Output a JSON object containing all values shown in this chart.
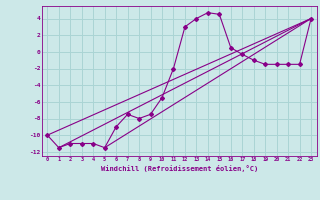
{
  "xlabel": "Windchill (Refroidissement éolien,°C)",
  "ylabel": "",
  "bg_color": "#cce8e8",
  "grid_color": "#aad4d4",
  "line_color": "#880088",
  "xlim": [
    -0.5,
    23.5
  ],
  "ylim": [
    -12.5,
    5.5
  ],
  "yticks": [
    4,
    2,
    0,
    -2,
    -4,
    -6,
    -8,
    -10,
    -12
  ],
  "xticks": [
    0,
    1,
    2,
    3,
    4,
    5,
    6,
    7,
    8,
    9,
    10,
    11,
    12,
    13,
    14,
    15,
    16,
    17,
    18,
    19,
    20,
    21,
    22,
    23
  ],
  "series": [
    [
      0,
      -10
    ],
    [
      1,
      -11.5
    ],
    [
      2,
      -11
    ],
    [
      3,
      -11
    ],
    [
      4,
      -11
    ],
    [
      5,
      -11.5
    ],
    [
      6,
      -9
    ],
    [
      7,
      -7.5
    ],
    [
      8,
      -8
    ],
    [
      9,
      -7.5
    ],
    [
      10,
      -5.5
    ],
    [
      11,
      -2
    ],
    [
      12,
      3
    ],
    [
      13,
      4
    ],
    [
      14,
      4.7
    ],
    [
      15,
      4.5
    ],
    [
      16,
      0.5
    ],
    [
      17,
      -0.3
    ],
    [
      18,
      -1
    ],
    [
      19,
      -1.5
    ],
    [
      20,
      -1.5
    ],
    [
      21,
      -1.5
    ],
    [
      22,
      -1.5
    ],
    [
      23,
      4
    ]
  ],
  "series2": [
    [
      0,
      -10
    ],
    [
      23,
      4
    ]
  ],
  "series3": [
    [
      1,
      -11.5
    ],
    [
      23,
      4
    ]
  ],
  "series4": [
    [
      5,
      -11.5
    ],
    [
      23,
      4
    ]
  ]
}
